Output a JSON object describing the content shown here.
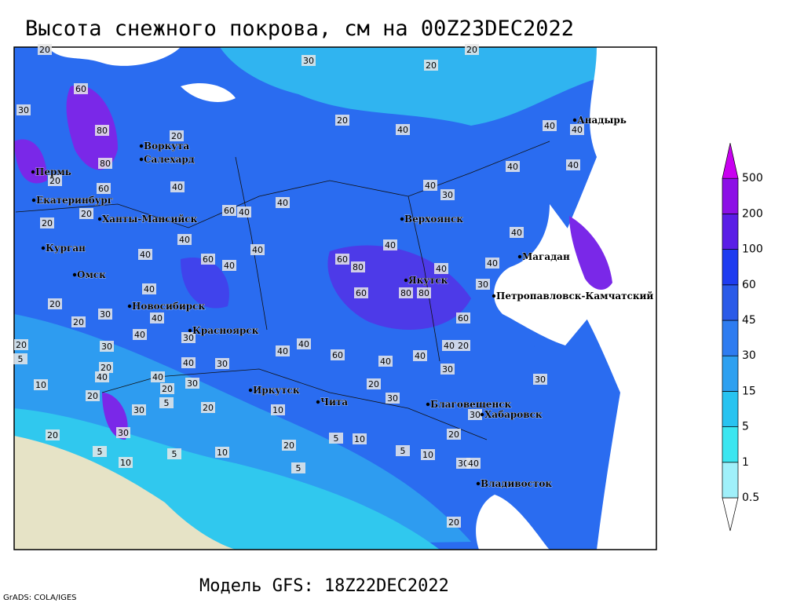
{
  "header": {
    "title": "Высота снежного покрова, см на 00Z23DEC2022"
  },
  "footer": {
    "model": "Модель GFS: 18Z22DEC2022",
    "credit": "GrADS: COLA/IGES"
  },
  "cities": [
    "Анадырь",
    "Воркута",
    "Салехард",
    "Пермь",
    "Екатеринбург",
    "Ханты-Мансийск",
    "Верхоянск",
    "Курган",
    "Магадан",
    "Омск",
    "Якутск",
    "Петропавловск-Камчатский",
    "Новосибирск",
    "Красноярск",
    "Иркутск",
    "Чита",
    "Благовещенск",
    "Хабаровск",
    "Владивосток"
  ],
  "contour_labels": [
    20,
    30,
    20,
    20,
    60,
    30,
    20,
    40,
    80,
    40,
    40,
    40,
    40,
    20,
    80,
    60,
    40,
    40,
    30,
    40,
    60,
    40,
    20,
    20,
    20,
    40,
    40,
    40,
    60,
    40,
    40,
    40,
    60,
    80,
    40,
    40,
    30,
    60,
    80,
    80,
    40,
    20,
    20,
    30,
    40,
    60,
    40,
    30,
    40,
    20,
    20,
    30,
    40,
    40,
    60,
    40,
    40,
    30,
    40,
    40,
    30,
    30,
    10,
    20,
    20,
    40,
    30,
    10,
    5,
    20,
    30,
    20,
    20,
    30,
    20,
    5,
    5,
    10,
    20,
    5,
    5,
    10,
    5,
    10,
    30,
    40,
    10,
    30,
    20,
    5,
    20,
    30
  ],
  "colorbar": {
    "levels": [
      0.5,
      1,
      5,
      15,
      30,
      45,
      60,
      100,
      200,
      500
    ],
    "colors": [
      "#ffffff",
      "#a0f0fa",
      "#3ce6f0",
      "#28c3f0",
      "#2ea0f0",
      "#2e7cf0",
      "#2a5ae8",
      "#1e3cf0",
      "#5a1ee6",
      "#8c10e6",
      "#c800f0"
    ]
  }
}
